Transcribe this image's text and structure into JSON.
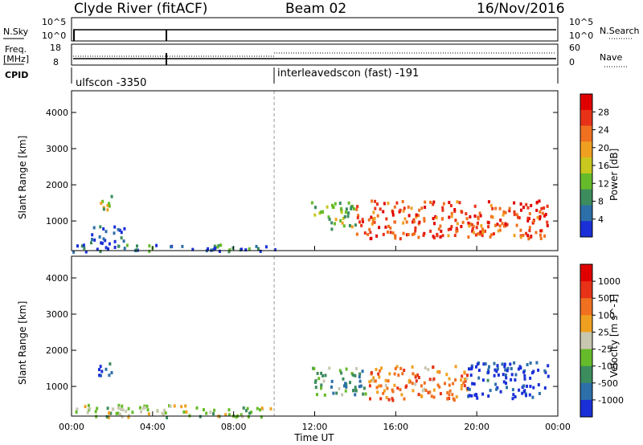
{
  "header": {
    "station": "Clyde River (fitACF)",
    "beam": "Beam 02",
    "date": "16/Nov/2016"
  },
  "side_labels": {
    "nsky": "N.Sky",
    "freq_line1": "Freq.",
    "freq_line2": "[MHz]",
    "cpid": "CPID",
    "nsearch": "N.Search",
    "nave": "Nave"
  },
  "cpid_segments": [
    {
      "label": "ulfscon -3350",
      "start": "00:00",
      "end": "10:00"
    },
    {
      "label": "interleavedscon (fast) -191",
      "start": "10:00",
      "end": "24:00"
    }
  ],
  "noise_panel": {
    "left_ticks": [
      "10^5",
      "10^0"
    ],
    "right_ticks": [
      "10^5",
      "10^0"
    ]
  },
  "freq_panel": {
    "left_ticks": [
      "18",
      "8"
    ],
    "right_ticks": [
      "60",
      "0"
    ]
  },
  "x_axis": {
    "label": "Time UT",
    "ticks": [
      "00:00",
      "04:00",
      "08:00",
      "12:00",
      "16:00",
      "20:00",
      "00:00"
    ]
  },
  "chart_data": [
    {
      "type": "heatmap",
      "name": "power",
      "ylabel": "Slant Range [km]",
      "yticks": [
        "1000",
        "2000",
        "3000",
        "4000"
      ],
      "ylim": [
        180,
        4600
      ],
      "xlim_hours": [
        0,
        24
      ],
      "colorbar": {
        "label": "Power [dB]",
        "ticks": [
          "4",
          "8",
          "12",
          "16",
          "20",
          "24",
          "28"
        ],
        "colors": [
          "#1a2fd8",
          "#2d6fa8",
          "#3c8c5e",
          "#66bb2a",
          "#c8c81e",
          "#f0a020",
          "#f07020",
          "#e83218",
          "#e00000"
        ]
      },
      "regions": [
        {
          "t0": 0.0,
          "t1": 10.0,
          "r0": 180,
          "r1": 380,
          "level": 0.2
        },
        {
          "t0": 1.2,
          "t1": 2.0,
          "r0": 1300,
          "r1": 1750,
          "level": 0.45
        },
        {
          "t0": 0.8,
          "t1": 2.6,
          "r0": 380,
          "r1": 900,
          "level": 0.15
        },
        {
          "t0": 11.8,
          "t1": 14.0,
          "r0": 800,
          "r1": 1550,
          "level": 0.4
        },
        {
          "t0": 14.0,
          "t1": 23.5,
          "r0": 550,
          "r1": 1600,
          "level": 0.8
        }
      ]
    },
    {
      "type": "heatmap",
      "name": "velocity",
      "ylabel": "Slant Range [km]",
      "yticks": [
        "1000",
        "2000",
        "3000",
        "4000"
      ],
      "ylim": [
        180,
        4600
      ],
      "xlim_hours": [
        0,
        24
      ],
      "colorbar": {
        "label": "Velocity [m s^-1]",
        "ticks": [
          "1000",
          "500",
          "100",
          "25",
          "-25",
          "-100",
          "-500",
          "-1000"
        ],
        "colors": [
          "#1a2fd8",
          "#2d6fa8",
          "#3c8c5e",
          "#66bb2a",
          "#c8c8b0",
          "#f0a020",
          "#f07020",
          "#e83218",
          "#e00000"
        ]
      },
      "regions": [
        {
          "t0": 0.0,
          "t1": 10.0,
          "r0": 180,
          "r1": 520,
          "level": 0.45
        },
        {
          "t0": 1.2,
          "t1": 2.0,
          "r0": 1300,
          "r1": 1750,
          "level": 0.15
        },
        {
          "t0": 11.8,
          "t1": 14.5,
          "r0": 800,
          "r1": 1550,
          "level": 0.3
        },
        {
          "t0": 14.5,
          "t1": 19.5,
          "r0": 650,
          "r1": 1600,
          "level": 0.7
        },
        {
          "t0": 19.5,
          "t1": 23.5,
          "r0": 700,
          "r1": 1700,
          "level": 0.05
        }
      ]
    }
  ]
}
